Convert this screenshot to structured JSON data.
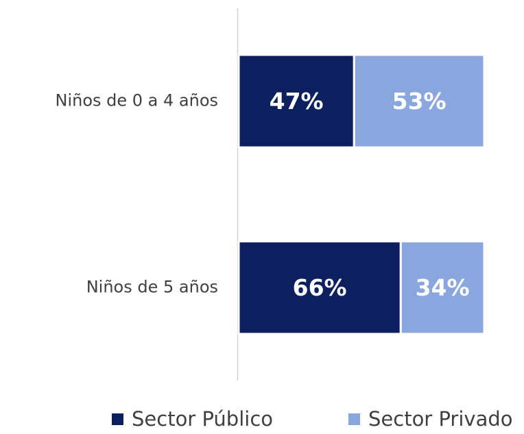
{
  "chart_data": {
    "type": "stacked_barh",
    "categories": [
      "Niños de 0 a 4 años",
      "Niños de 5 años"
    ],
    "series": [
      {
        "name": "Sector Público",
        "color": "#0c1f5e",
        "values": [
          47,
          66
        ],
        "value_labels": [
          "47%",
          "66%"
        ]
      },
      {
        "name": "Sector Privado",
        "color": "#8aa6df",
        "values": [
          53,
          34
        ],
        "value_labels": [
          "53%",
          "34%"
        ]
      }
    ],
    "xlim": [
      0,
      100
    ],
    "legend": "bottom"
  }
}
